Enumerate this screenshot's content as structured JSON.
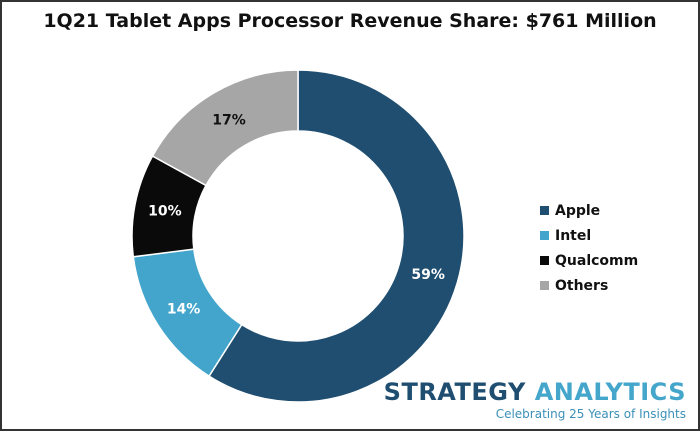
{
  "chart_data": {
    "type": "pie",
    "style": "donut",
    "title": "1Q21 Tablet Apps Processor Revenue Share: $761 Million",
    "categories": [
      "Apple",
      "Intel",
      "Qualcomm",
      "Others"
    ],
    "values": [
      59,
      14,
      10,
      17
    ],
    "labels": [
      "59%",
      "14%",
      "10%",
      "17%"
    ],
    "colors": [
      "#1f4e70",
      "#43a5cb",
      "#0a0a0a",
      "#a6a6a6"
    ],
    "label_colors": [
      "#ffffff",
      "#ffffff",
      "#ffffff",
      "#111111"
    ],
    "legend_placement": "right"
  },
  "branding": {
    "name_part1": "STRATEGY",
    "name_part2": "ANALYTICS",
    "tagline": "Celebrating 25 Years of Insights"
  }
}
